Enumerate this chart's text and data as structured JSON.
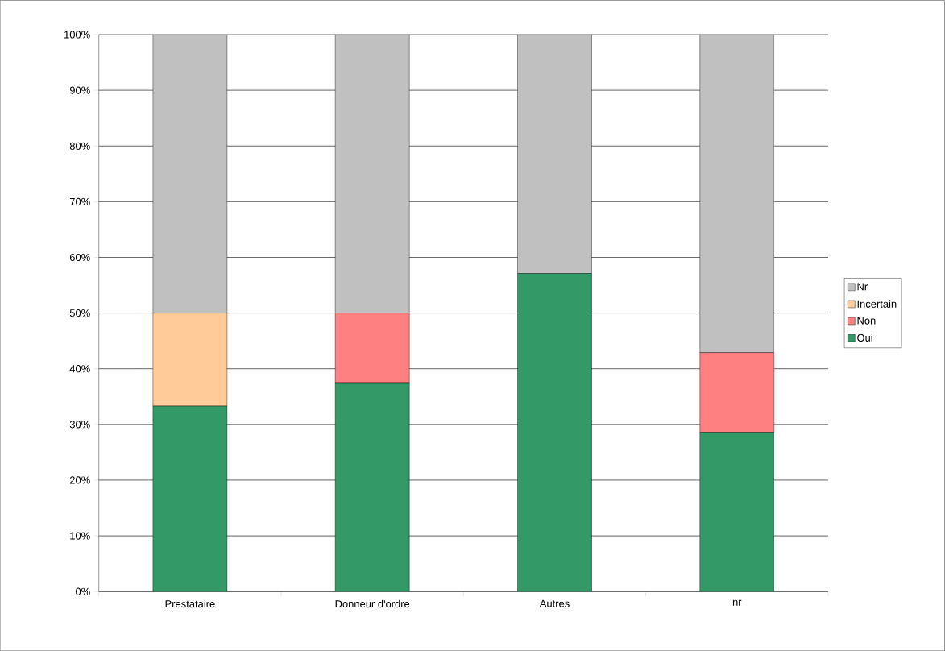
{
  "chart_data": {
    "type": "bar",
    "stacked": true,
    "categories": [
      "Prestataire",
      "Donneur d'ordre",
      "Autres",
      "nr"
    ],
    "series": [
      {
        "name": "Oui",
        "color": "#339966",
        "values": [
          33.3,
          37.5,
          57.1,
          28.6
        ]
      },
      {
        "name": "Non",
        "color": "#ff8080",
        "values": [
          0,
          12.5,
          0,
          14.3
        ]
      },
      {
        "name": "Incertain",
        "color": "#ffcc99",
        "values": [
          16.7,
          0,
          0,
          0
        ]
      },
      {
        "name": "Nr",
        "color": "#c0c0c0",
        "values": [
          50,
          50,
          42.9,
          57.1
        ]
      }
    ],
    "ylim": [
      0,
      100
    ],
    "yticks": [
      {
        "value": 0,
        "label": "0%"
      },
      {
        "value": 10,
        "label": "10%"
      },
      {
        "value": 20,
        "label": "20%"
      },
      {
        "value": 30,
        "label": "30%"
      },
      {
        "value": 40,
        "label": "40%"
      },
      {
        "value": 50,
        "label": "50%"
      },
      {
        "value": 60,
        "label": "60%"
      },
      {
        "value": 70,
        "label": "70%"
      },
      {
        "value": 80,
        "label": "80%"
      },
      {
        "value": 90,
        "label": "90%"
      },
      {
        "value": 100,
        "label": "100%"
      }
    ],
    "grid": "y",
    "legend": "right"
  }
}
